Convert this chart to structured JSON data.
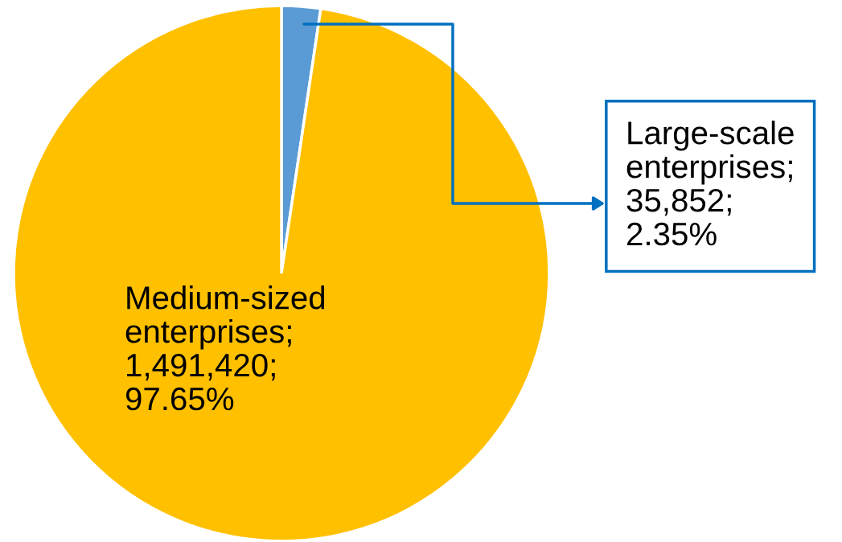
{
  "chart_data": {
    "type": "pie",
    "categories": [
      "Large-scale enterprises",
      "Medium-sized enterprises"
    ],
    "values": [
      35852,
      1491420
    ],
    "colors": [
      "#5b9bd5",
      "#ffc000"
    ],
    "value_labels": [
      ";\n35,852;\n2.35%",
      ";\n1,491,420;\n97.65%"
    ],
    "legend": false
  }
}
